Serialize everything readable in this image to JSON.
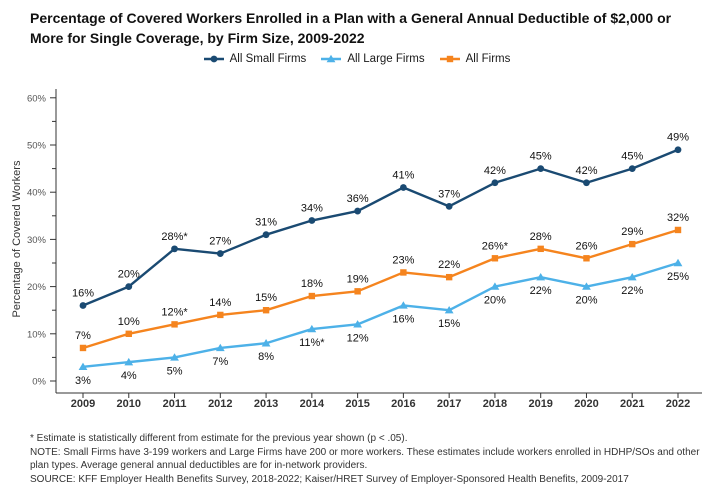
{
  "title": "Percentage of Covered Workers Enrolled in a Plan with a General Annual Deductible of $2,000 or More for Single Coverage, by Firm Size, 2009-2022",
  "chart_data": {
    "type": "line",
    "x": [
      2009,
      2010,
      2011,
      2012,
      2013,
      2014,
      2015,
      2016,
      2017,
      2018,
      2019,
      2020,
      2021,
      2022
    ],
    "ylabel": "Percentage of Covered Workers",
    "xlabel": "",
    "ylim": [
      0,
      60
    ],
    "y_ticks": [
      "0%",
      "10%",
      "20%",
      "30%",
      "40%",
      "50%",
      "60%"
    ],
    "grid": false,
    "legend_position": "top-center",
    "series": [
      {
        "name": "All Small Firms",
        "color": "#1A4A72",
        "marker": "circle",
        "label_position": "above",
        "values": [
          16,
          20,
          28,
          27,
          31,
          34,
          36,
          41,
          37,
          42,
          45,
          42,
          45,
          49
        ],
        "labels": [
          "16%",
          "20%",
          "28%*",
          "27%",
          "31%",
          "34%",
          "36%",
          "41%",
          "37%",
          "42%",
          "45%",
          "42%",
          "45%",
          "49%"
        ]
      },
      {
        "name": "All Large Firms",
        "color": "#4DB1E8",
        "marker": "triangle",
        "label_position": "below",
        "values": [
          3,
          4,
          5,
          7,
          8,
          11,
          12,
          16,
          15,
          20,
          22,
          20,
          22,
          25
        ],
        "labels": [
          "3%",
          "4%",
          "5%",
          "7%",
          "8%",
          "11%*",
          "12%",
          "16%",
          "15%",
          "20%",
          "22%",
          "20%",
          "22%",
          "25%"
        ]
      },
      {
        "name": "All Firms",
        "color": "#F5841E",
        "marker": "square",
        "label_position": "above",
        "values": [
          7,
          10,
          12,
          14,
          15,
          18,
          19,
          23,
          22,
          26,
          28,
          26,
          29,
          32
        ],
        "labels": [
          "7%",
          "10%",
          "12%*",
          "14%",
          "15%",
          "18%",
          "19%",
          "23%",
          "22%",
          "26%*",
          "28%",
          "26%",
          "29%",
          "32%"
        ]
      }
    ]
  },
  "footnotes": {
    "asterisk": "* Estimate is statistically different from estimate for the previous year shown (p < .05).",
    "note": "NOTE: Small Firms have 3-199 workers and Large Firms have 200 or more workers. These estimates include workers enrolled in HDHP/SOs and other plan types. Average general annual deductibles are for in-network providers.",
    "source": "SOURCE: KFF Employer Health Benefits Survey, 2018-2022; Kaiser/HRET Survey of Employer-Sponsored Health Benefits, 2009-2017"
  }
}
